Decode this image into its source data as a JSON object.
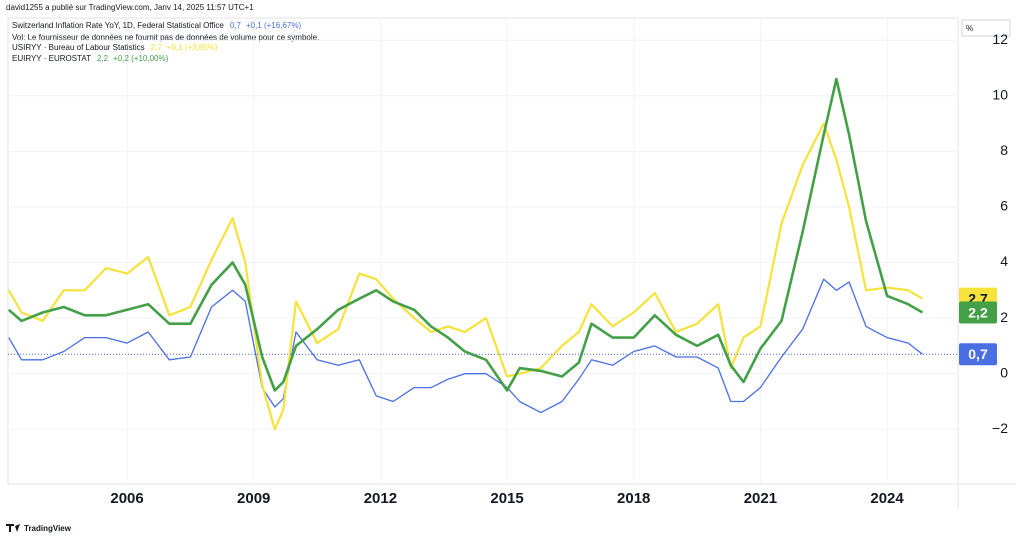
{
  "header": "david1255 a publié sur TradingView.com, Janv 14, 2025 11:57 UTC+1",
  "footer": "TradingView",
  "chart_data": {
    "type": "line",
    "annotation": "Vol: Le fournisseur de données ne fournit pas de données de volume pour ce symbole.",
    "y_unit": "%",
    "x": [
      2003.2,
      2003.5,
      2004,
      2004.5,
      2005,
      2005.5,
      2006,
      2006.5,
      2007,
      2007.5,
      2008,
      2008.5,
      2008.8,
      2009.2,
      2009.5,
      2009.7,
      2010,
      2010.5,
      2011,
      2011.5,
      2011.9,
      2012.3,
      2012.8,
      2013.2,
      2013.6,
      2014,
      2014.5,
      2015,
      2015.3,
      2015.8,
      2016.3,
      2016.7,
      2017,
      2017.5,
      2018,
      2018.5,
      2019,
      2019.5,
      2020,
      2020.3,
      2020.6,
      2021,
      2021.5,
      2022,
      2022.5,
      2022.8,
      2023.1,
      2023.5,
      2024,
      2024.5,
      2024.84
    ],
    "xlim": [
      2003.18,
      2025.68
    ],
    "xticks": [
      2006,
      2009,
      2012,
      2015,
      2018,
      2021,
      2024
    ],
    "ylim": [
      -3.97,
      12.8
    ],
    "yticks": [
      {
        "value": -2,
        "label": "−2"
      },
      0,
      2,
      4,
      6,
      8,
      10,
      12
    ],
    "grid": true,
    "series": [
      {
        "name": "Switzerland Inflation Rate YoY, 1D, Federal Statistical Office",
        "color": "#4a6fe3",
        "legend_value": "0,7",
        "change": "+0,1 (+16,67%)",
        "last_label": "0,7",
        "values": [
          1.3,
          0.5,
          0.5,
          0.8,
          1.3,
          1.3,
          1.1,
          1.5,
          0.5,
          0.6,
          2.4,
          3.0,
          2.6,
          -0.5,
          -1.2,
          -0.9,
          1.5,
          0.5,
          0.3,
          0.5,
          -0.8,
          -1.0,
          -0.5,
          -0.5,
          -0.2,
          0.0,
          0.0,
          -0.5,
          -1.0,
          -1.4,
          -1.0,
          -0.2,
          0.5,
          0.3,
          0.8,
          1.0,
          0.6,
          0.6,
          0.2,
          -1.0,
          -1.0,
          -0.5,
          0.6,
          1.6,
          3.4,
          3.0,
          3.3,
          1.7,
          1.3,
          1.1,
          0.7
        ]
      },
      {
        "name": "USIRYY · Bureau of Labour Statistics",
        "color": "#f5e23a",
        "legend_value": "2,7",
        "change": "+0,1 (+3,85%)",
        "last_label": "2,7",
        "values": [
          3.0,
          2.2,
          1.9,
          3.0,
          3.0,
          3.8,
          3.6,
          4.2,
          2.1,
          2.4,
          4.1,
          5.6,
          4.0,
          -0.4,
          -2.0,
          -1.3,
          2.6,
          1.1,
          1.6,
          3.6,
          3.4,
          2.7,
          2.0,
          1.5,
          1.7,
          1.5,
          2.0,
          -0.1,
          0.0,
          0.2,
          1.0,
          1.5,
          2.5,
          1.7,
          2.2,
          2.9,
          1.5,
          1.8,
          2.5,
          0.2,
          1.3,
          1.7,
          5.4,
          7.5,
          9.0,
          7.7,
          6.0,
          3.0,
          3.1,
          3.0,
          2.7
        ]
      },
      {
        "name": "EUIRYY · EUROSTAT",
        "color": "#43a047",
        "legend_value": "2,2",
        "change": "+0,2 (+10,00%)",
        "last_label": "2,2",
        "values": [
          2.3,
          1.9,
          2.2,
          2.4,
          2.1,
          2.1,
          2.3,
          2.5,
          1.8,
          1.8,
          3.2,
          4.0,
          3.2,
          0.6,
          -0.6,
          -0.3,
          1.0,
          1.6,
          2.3,
          2.7,
          3.0,
          2.6,
          2.3,
          1.7,
          1.3,
          0.8,
          0.5,
          -0.6,
          0.2,
          0.1,
          -0.1,
          0.4,
          1.8,
          1.3,
          1.3,
          2.1,
          1.4,
          1.0,
          1.4,
          0.3,
          -0.3,
          0.9,
          1.9,
          5.1,
          8.6,
          10.6,
          8.6,
          5.5,
          2.8,
          2.5,
          2.2
        ]
      }
    ]
  }
}
